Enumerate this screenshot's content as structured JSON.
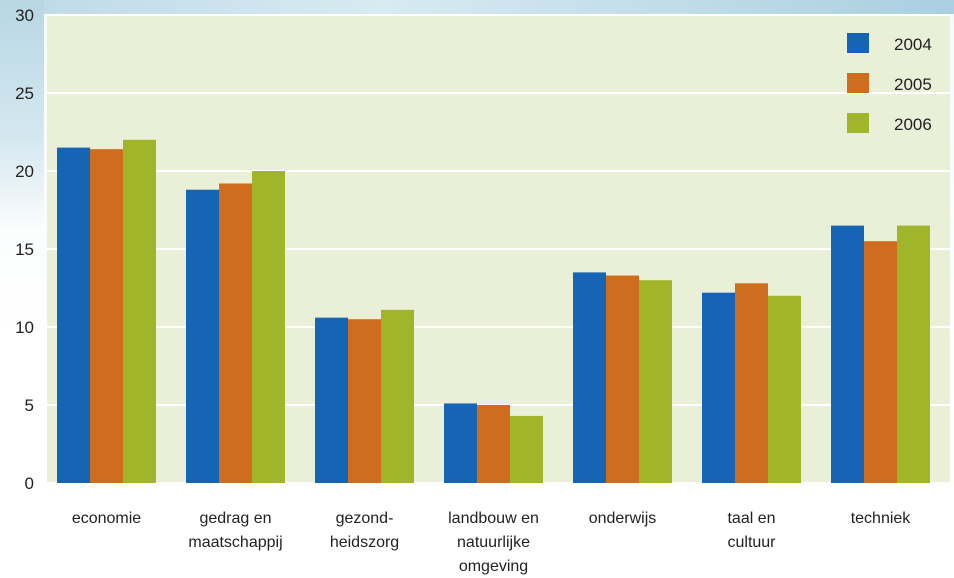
{
  "chart_data": {
    "type": "bar",
    "title": "",
    "xlabel": "",
    "ylabel": "",
    "ylim": [
      0,
      30
    ],
    "yticks": [
      0,
      5,
      10,
      15,
      20,
      25,
      30
    ],
    "grid": true,
    "legend_position": "top-right",
    "categories": [
      [
        "economie"
      ],
      [
        "gedrag en",
        "maatschappij"
      ],
      [
        "gezond-",
        "heidszorg"
      ],
      [
        "landbouw en",
        "natuurlijke",
        "omgeving"
      ],
      [
        "onderwijs"
      ],
      [
        "taal en",
        "cultuur"
      ],
      [
        "techniek"
      ]
    ],
    "series": [
      {
        "name": "2004",
        "color": "#1565b4",
        "values": [
          21.5,
          18.8,
          10.6,
          5.1,
          13.5,
          12.2,
          16.5
        ]
      },
      {
        "name": "2005",
        "color": "#d06c1e",
        "values": [
          21.4,
          19.2,
          10.5,
          5.0,
          13.3,
          12.8,
          15.5
        ]
      },
      {
        "name": "2006",
        "color": "#a0b52a",
        "values": [
          22.0,
          20.0,
          11.1,
          4.3,
          13.0,
          12.0,
          16.5
        ]
      }
    ],
    "plot_background": "#eaf0d8",
    "gridline_color": "#ffffff"
  }
}
